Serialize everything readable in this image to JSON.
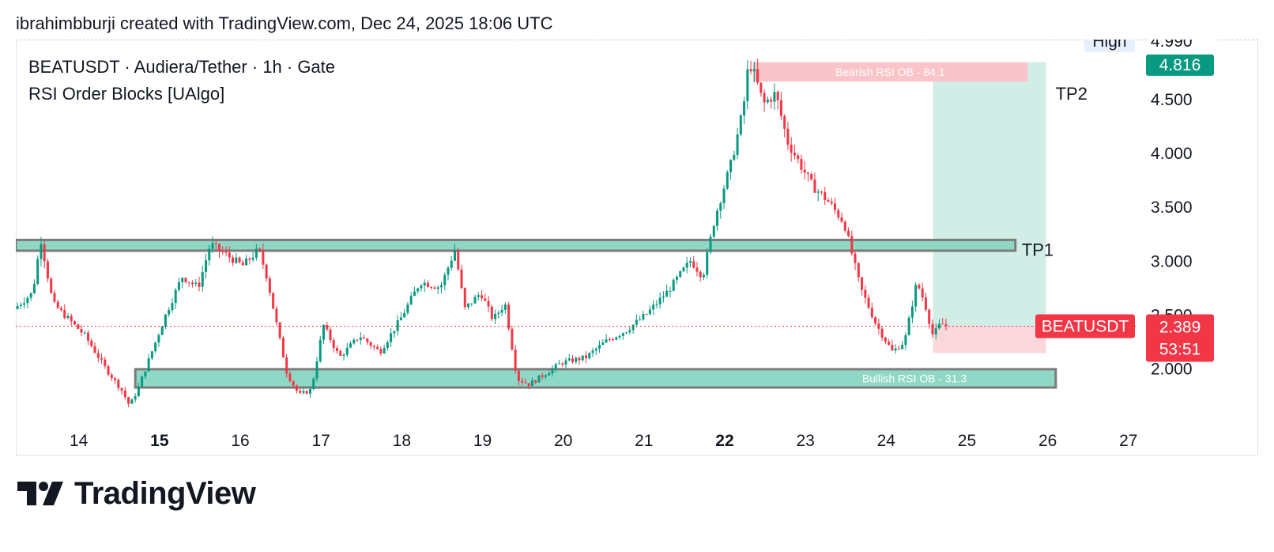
{
  "header": {
    "caption": "ibrahimbburji created with TradingView.com, Dec 24, 2025 18:06 UTC"
  },
  "legend": {
    "symbol_line": "BEATUSDT · Audiera/Tether · 1h · Gate",
    "indicator_line": "RSI Order Blocks [UAlgo]"
  },
  "brand": {
    "name": "TradingView",
    "logo_icon": "tradingview-logo-icon"
  },
  "colors": {
    "up": "#089981",
    "down": "#f23645",
    "zone_fill": "#8fd8c6",
    "zone_border": "#7b7b7b",
    "target_fill": "#d2ede6",
    "stop_fill": "#fad8db",
    "bearish_ob_fill": "#f9c4ca",
    "last_price_bg": "#f23645",
    "high_bg": "#089981",
    "axis_text": "#131722"
  },
  "chart_data": {
    "type": "candlestick",
    "title": "BEATUSDT · Audiera/Tether · 1h · Gate",
    "x_tick_labels": [
      "14",
      "15",
      "16",
      "17",
      "18",
      "19",
      "20",
      "21",
      "22",
      "23",
      "24",
      "25",
      "26",
      "27"
    ],
    "x_tick_days": [
      14,
      15,
      16,
      17,
      18,
      19,
      20,
      21,
      22,
      23,
      24,
      25,
      26,
      27
    ],
    "x_tick_bold": [
      "15",
      "22"
    ],
    "x_range_days": [
      13.22,
      27.1
    ],
    "y_tick_labels": [
      "2.000",
      "2.500",
      "3.000",
      "3.500",
      "4.000",
      "4.500"
    ],
    "y_ticks": [
      2.0,
      2.5,
      3.0,
      3.5,
      4.0,
      4.5
    ],
    "ylim": [
      1.6,
      5.05
    ],
    "grid": false,
    "price_path": [
      [
        13.22,
        2.55
      ],
      [
        13.45,
        2.7
      ],
      [
        13.55,
        3.2
      ],
      [
        13.7,
        2.6
      ],
      [
        13.9,
        2.45
      ],
      [
        14.1,
        2.3
      ],
      [
        14.35,
        2.0
      ],
      [
        14.55,
        1.8
      ],
      [
        14.65,
        1.65
      ],
      [
        14.75,
        1.8
      ],
      [
        14.9,
        2.1
      ],
      [
        15.1,
        2.5
      ],
      [
        15.3,
        2.85
      ],
      [
        15.5,
        2.75
      ],
      [
        15.65,
        3.15
      ],
      [
        15.85,
        3.05
      ],
      [
        16.05,
        2.95
      ],
      [
        16.25,
        3.1
      ],
      [
        16.35,
        2.85
      ],
      [
        16.5,
        2.3
      ],
      [
        16.6,
        1.95
      ],
      [
        16.75,
        1.75
      ],
      [
        16.9,
        1.8
      ],
      [
        17.05,
        2.4
      ],
      [
        17.25,
        2.1
      ],
      [
        17.5,
        2.3
      ],
      [
        17.75,
        2.15
      ],
      [
        18.0,
        2.45
      ],
      [
        18.25,
        2.8
      ],
      [
        18.5,
        2.75
      ],
      [
        18.68,
        3.1
      ],
      [
        18.8,
        2.55
      ],
      [
        19.0,
        2.7
      ],
      [
        19.15,
        2.45
      ],
      [
        19.3,
        2.6
      ],
      [
        19.45,
        1.9
      ],
      [
        19.6,
        1.85
      ],
      [
        19.8,
        1.95
      ],
      [
        20.0,
        2.05
      ],
      [
        20.3,
        2.1
      ],
      [
        20.55,
        2.25
      ],
      [
        20.8,
        2.35
      ],
      [
        21.05,
        2.5
      ],
      [
        21.3,
        2.7
      ],
      [
        21.6,
        3.0
      ],
      [
        21.75,
        2.85
      ],
      [
        21.9,
        3.4
      ],
      [
        22.1,
        3.9
      ],
      [
        22.25,
        4.4
      ],
      [
        22.32,
        4.85
      ],
      [
        22.4,
        4.7
      ],
      [
        22.5,
        4.45
      ],
      [
        22.65,
        4.55
      ],
      [
        22.8,
        4.1
      ],
      [
        22.95,
        3.9
      ],
      [
        23.1,
        3.7
      ],
      [
        23.3,
        3.55
      ],
      [
        23.5,
        3.35
      ],
      [
        23.7,
        2.75
      ],
      [
        23.9,
        2.4
      ],
      [
        24.1,
        2.15
      ],
      [
        24.25,
        2.25
      ],
      [
        24.4,
        2.8
      ],
      [
        24.5,
        2.6
      ],
      [
        24.6,
        2.3
      ],
      [
        24.7,
        2.42
      ],
      [
        24.75,
        2.39
      ]
    ],
    "zones": [
      {
        "kind": "resistance",
        "day_start": 13.22,
        "day_end": 25.6,
        "price_top": 3.19,
        "price_bottom": 3.09
      },
      {
        "kind": "bullish_rsi_ob",
        "label": "Bullish RSI OB - 31.3",
        "day_start": 14.7,
        "day_end": 26.1,
        "price_top": 1.99,
        "price_bottom": 1.82
      }
    ],
    "bearish_rsi_ob": {
      "label": "Bearish RSI OB - 84.1",
      "day_start": 22.35,
      "day_end": 25.75,
      "price_top": 4.84,
      "price_bottom": 4.66
    },
    "position": {
      "day_start": 24.58,
      "day_end": 25.98,
      "entry": 2.389,
      "target": 4.84,
      "stop": 2.14,
      "target_labels": [
        {
          "text": "TP2",
          "price": 4.55
        },
        {
          "text": "TP1",
          "price": 3.1
        }
      ]
    },
    "price_scale_labels": {
      "high_label": "High",
      "high_value": "4.990",
      "high_badge": "4.816",
      "last_symbol": "BEATUSDT",
      "last_price": "2.389",
      "countdown": "53:51"
    },
    "last_price": 2.389,
    "high_price": 4.99,
    "high_badge_price": 4.816
  }
}
